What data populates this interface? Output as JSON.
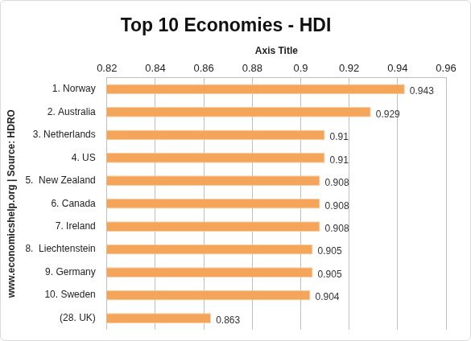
{
  "chart_data": {
    "type": "bar",
    "orientation": "horizontal",
    "title": "Top 10 Economies - HDI",
    "xlabel": "Axis Title",
    "ylabel": "www.economicshelp.org | Source: HDRO",
    "categories": [
      "1. Norway",
      "2. Australia",
      "3. Netherlands",
      "4. US",
      "5.  New Zealand",
      "6. Canada",
      "7. Ireland",
      "8.  Liechtenstein",
      "9. Germany",
      "10. Sweden",
      "(28. UK)"
    ],
    "values": [
      0.943,
      0.929,
      0.91,
      0.91,
      0.908,
      0.908,
      0.908,
      0.905,
      0.905,
      0.904,
      0.863
    ],
    "color": "#f5a55a",
    "xlim": [
      0.82,
      0.96
    ],
    "xticks": [
      0.82,
      0.84,
      0.86,
      0.88,
      0.9,
      0.92,
      0.94,
      0.96
    ],
    "grid": true,
    "data_labels": true
  }
}
